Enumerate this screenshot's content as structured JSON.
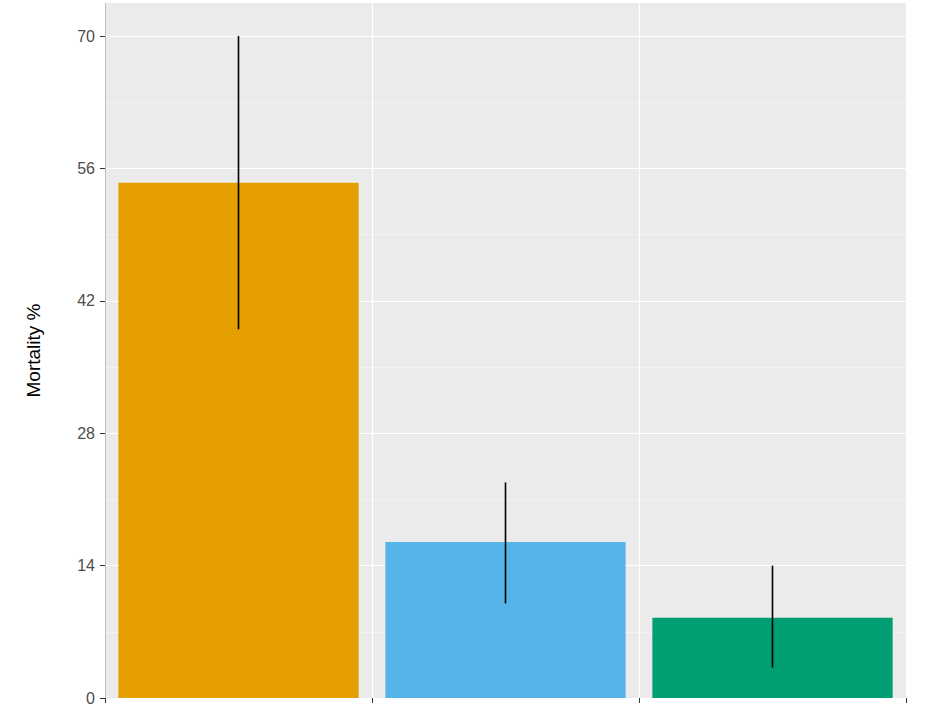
{
  "chart_data": {
    "type": "bar",
    "ylabel": "Mortality %",
    "categories": [
      null,
      null,
      null
    ],
    "values": [
      54.5,
      16.5,
      8.5
    ],
    "error_low": [
      39,
      10,
      3.2
    ],
    "error_high": [
      70,
      22.8,
      14
    ],
    "colors": [
      "#E69F00",
      "#56B4E9",
      "#009E73"
    ],
    "ylim": [
      0,
      73.5
    ],
    "yticks": [
      0,
      14,
      28,
      42,
      56,
      70
    ],
    "grid": true,
    "tick_labels": "y"
  }
}
